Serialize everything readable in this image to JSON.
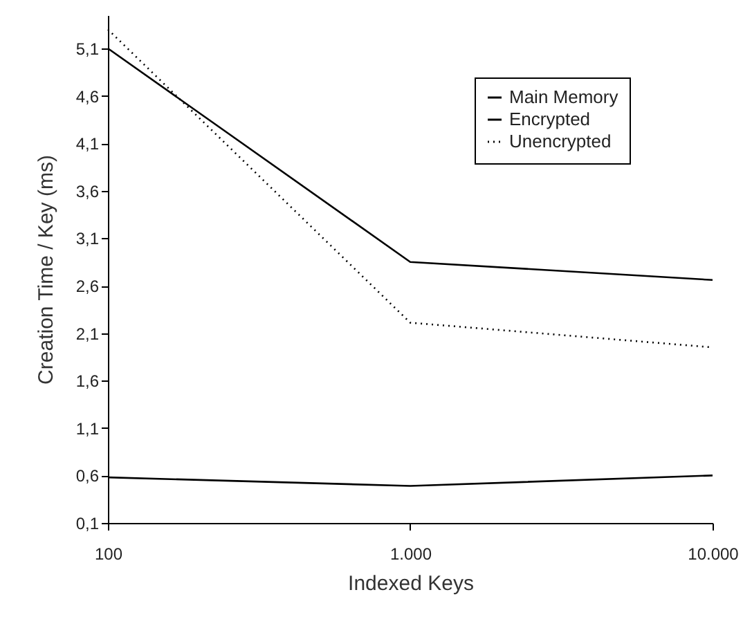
{
  "chart_data": {
    "type": "line",
    "xlabel": "Indexed Keys",
    "ylabel": "Creation Time / Key (ms)",
    "log": "x",
    "x": [
      100,
      1000,
      10000
    ],
    "xlim": [
      100,
      10000
    ],
    "xticks": [
      100,
      {
        "value": 1000,
        "label": "1.000"
      },
      {
        "value": 10000,
        "label": "10.000"
      }
    ],
    "ylim": [
      0.1,
      5.45
    ],
    "yticks": [
      {
        "value": 0.1,
        "label": "0,1"
      },
      {
        "value": 0.6,
        "label": "0,6"
      },
      {
        "value": 1.1,
        "label": "1,1"
      },
      {
        "value": 1.6,
        "label": "1,6"
      },
      {
        "value": 2.1,
        "label": "2,1"
      },
      {
        "value": 2.6,
        "label": "2,6"
      },
      {
        "value": 3.1,
        "label": "3,1"
      },
      {
        "value": 3.6,
        "label": "3,6"
      },
      {
        "value": 4.1,
        "label": "4,1"
      },
      {
        "value": 4.6,
        "label": "4,6"
      },
      {
        "value": 5.1,
        "label": "5,1"
      }
    ],
    "legend": "top right",
    "grid": false,
    "series": [
      {
        "name": "Main Memory",
        "color": "#000000",
        "line_style": "solid",
        "values": [
          0.58,
          0.49,
          0.6
        ]
      },
      {
        "name": "Encrypted",
        "color": "#000000",
        "line_style": "solid",
        "values": [
          5.1,
          2.85,
          2.66
        ]
      },
      {
        "name": "Unencrypted",
        "color": "#000000",
        "line_style": "dotted",
        "values": [
          5.3,
          2.21,
          1.95
        ]
      }
    ]
  }
}
